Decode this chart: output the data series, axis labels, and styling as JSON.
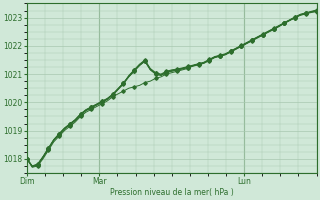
{
  "bg_color": "#d0e8d8",
  "grid_color": "#a8c8b0",
  "line_color": "#2d6e2d",
  "marker_color": "#2d6e2d",
  "xlabel": "Pression niveau de la mer( hPa )",
  "ylim": [
    1017.5,
    1023.5
  ],
  "yticks": [
    1018,
    1019,
    1020,
    1021,
    1022,
    1023
  ],
  "xtick_labels": [
    "Dim",
    "Mar",
    "Lun"
  ],
  "xtick_positions": [
    0.0,
    0.25,
    0.75
  ],
  "series": [
    [
      1018.0,
      1017.7,
      1017.75,
      1018.0,
      1018.3,
      1018.6,
      1018.8,
      1019.0,
      1019.15,
      1019.3,
      1019.5,
      1019.65,
      1019.75,
      1019.85,
      1019.95,
      1020.05,
      1020.2,
      1020.3,
      1020.4,
      1020.5,
      1020.55,
      1020.6,
      1020.7,
      1020.75,
      1020.85,
      1020.9,
      1021.0,
      1021.05,
      1021.1,
      1021.15,
      1021.2,
      1021.3,
      1021.35,
      1021.4,
      1021.5,
      1021.6,
      1021.65,
      1021.7,
      1021.8,
      1021.9,
      1022.0,
      1022.1,
      1022.2,
      1022.3,
      1022.4,
      1022.5,
      1022.6,
      1022.7,
      1022.8,
      1022.9,
      1023.0,
      1023.1,
      1023.15,
      1023.2,
      1023.2
    ],
    [
      1018.0,
      1017.72,
      1017.78,
      1018.05,
      1018.35,
      1018.65,
      1018.85,
      1019.05,
      1019.2,
      1019.35,
      1019.55,
      1019.7,
      1019.8,
      1019.9,
      1020.0,
      1020.1,
      1020.25,
      1020.45,
      1020.65,
      1020.9,
      1021.1,
      1021.3,
      1021.45,
      1021.15,
      1021.0,
      1020.95,
      1021.05,
      1021.1,
      1021.15,
      1021.2,
      1021.25,
      1021.3,
      1021.35,
      1021.4,
      1021.5,
      1021.6,
      1021.65,
      1021.7,
      1021.8,
      1021.9,
      1022.0,
      1022.1,
      1022.2,
      1022.3,
      1022.4,
      1022.5,
      1022.6,
      1022.7,
      1022.8,
      1022.9,
      1023.0,
      1023.1,
      1023.15,
      1023.2,
      1023.25
    ],
    [
      1018.0,
      1017.73,
      1017.79,
      1018.06,
      1018.36,
      1018.66,
      1018.87,
      1019.07,
      1019.22,
      1019.37,
      1019.57,
      1019.72,
      1019.82,
      1019.92,
      1020.02,
      1020.12,
      1020.27,
      1020.47,
      1020.67,
      1020.95,
      1021.15,
      1021.35,
      1021.5,
      1021.2,
      1021.05,
      1021.0,
      1021.1,
      1021.15,
      1021.18,
      1021.22,
      1021.27,
      1021.32,
      1021.37,
      1021.42,
      1021.52,
      1021.62,
      1021.67,
      1021.72,
      1021.82,
      1021.92,
      1022.02,
      1022.12,
      1022.22,
      1022.32,
      1022.42,
      1022.52,
      1022.62,
      1022.72,
      1022.82,
      1022.92,
      1023.02,
      1023.12,
      1023.17,
      1023.22,
      1023.27
    ],
    [
      1018.0,
      1017.74,
      1017.8,
      1018.07,
      1018.37,
      1018.67,
      1018.88,
      1019.08,
      1019.23,
      1019.38,
      1019.58,
      1019.73,
      1019.83,
      1019.93,
      1020.03,
      1020.13,
      1020.28,
      1020.48,
      1020.68,
      1020.93,
      1021.13,
      1021.33,
      1021.48,
      1021.18,
      1021.03,
      1020.98,
      1021.08,
      1021.13,
      1021.16,
      1021.2,
      1021.25,
      1021.3,
      1021.35,
      1021.4,
      1021.5,
      1021.6,
      1021.65,
      1021.7,
      1021.8,
      1021.9,
      1022.0,
      1022.1,
      1022.2,
      1022.3,
      1022.4,
      1022.5,
      1022.6,
      1022.7,
      1022.82,
      1022.92,
      1023.02,
      1023.1,
      1023.15,
      1023.2,
      1023.25
    ],
    [
      1018.0,
      1017.75,
      1017.82,
      1018.08,
      1018.38,
      1018.68,
      1018.89,
      1019.09,
      1019.24,
      1019.39,
      1019.59,
      1019.74,
      1019.84,
      1019.94,
      1020.04,
      1020.14,
      1020.29,
      1020.49,
      1020.69,
      1020.91,
      1021.11,
      1021.31,
      1021.46,
      1021.16,
      1021.01,
      1020.96,
      1021.06,
      1021.11,
      1021.14,
      1021.18,
      1021.23,
      1021.28,
      1021.33,
      1021.38,
      1021.48,
      1021.58,
      1021.63,
      1021.68,
      1021.78,
      1021.88,
      1021.98,
      1022.08,
      1022.18,
      1022.28,
      1022.38,
      1022.48,
      1022.58,
      1022.68,
      1022.8,
      1022.9,
      1023.0,
      1023.08,
      1023.13,
      1023.18,
      1023.23
    ]
  ]
}
